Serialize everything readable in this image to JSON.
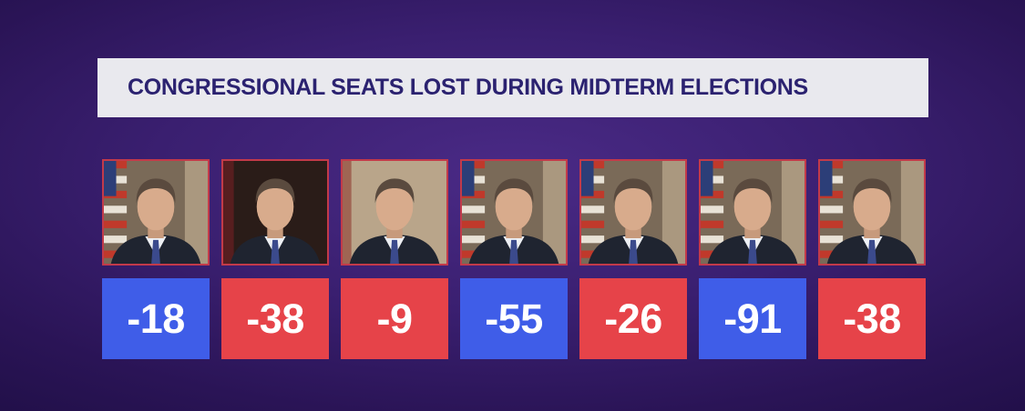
{
  "title": "CONGRESSIONAL SEATS LOST DURING MIDTERM ELECTIONS",
  "colors": {
    "background": "#3a1f70",
    "banner": "#e9e9ee",
    "title_text": "#2b2270",
    "democrat": "#3f5de8",
    "republican": "#e64349"
  },
  "chart_data": {
    "type": "bar",
    "title": "CONGRESSIONAL SEATS LOST DURING MIDTERM ELECTIONS",
    "categories": [
      "",
      "",
      "",
      "",
      "",
      "",
      ""
    ],
    "values": [
      -18,
      -38,
      -9,
      -55,
      -26,
      -91,
      -38
    ],
    "labels": [
      "-18",
      "-38",
      "-9",
      "-55",
      "-26",
      "-91",
      "-38"
    ],
    "party_colors": [
      "democrat",
      "republican",
      "republican",
      "democrat",
      "republican",
      "democrat",
      "republican"
    ],
    "portrait_backgrounds": [
      "flag-left",
      "flag-dark",
      "plain-warm",
      "flag-left",
      "flag-left",
      "flag-left",
      "flag-left"
    ],
    "grid": false,
    "legend": "none"
  }
}
